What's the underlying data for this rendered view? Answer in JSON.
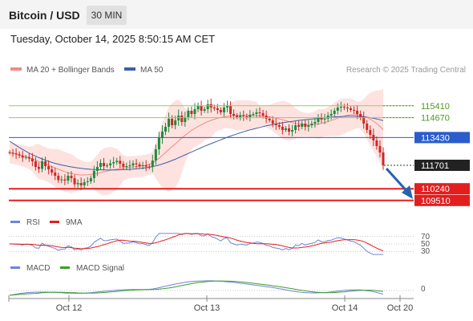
{
  "header": {
    "title": "Bitcoin / USD",
    "timeframe": "30 MIN",
    "datetime": "Tuesday, October 14, 2025 8:50:15 AM CET"
  },
  "legend": {
    "ma20": "MA 20 + Bollinger Bands",
    "ma50": "MA 50",
    "copyright": "Research © 2025 Trading Central"
  },
  "colors": {
    "ma20": "#f08a86",
    "band": "#fdd8d6",
    "ma50": "#3d5fa8",
    "up": "#1e8a3e",
    "down": "#c92a26",
    "resistance": "#9acd5a",
    "pivot": "#2a5ccc",
    "support": "#e31e1e",
    "arrow": "#2563b0",
    "rsi": "#6d86d6",
    "rsi_ma": "#e31e1e",
    "macd": "#6d86d6",
    "macd_signal": "#3c9c2c"
  },
  "chart_data": [
    {
      "type": "candlestick",
      "title": "Bitcoin / USD",
      "x_ticks": [
        "Oct 12",
        "Oct 13",
        "Oct 14",
        "Oct 20"
      ],
      "ylim": [
        108900,
        117200
      ],
      "price_levels": [
        {
          "label": "115410",
          "value": 115410,
          "kind": "resistance"
        },
        {
          "label": "114670",
          "value": 114670,
          "kind": "resistance"
        },
        {
          "label": "113430",
          "value": 113430,
          "kind": "pivot"
        },
        {
          "label": "111701",
          "value": 111701,
          "kind": "last"
        },
        {
          "label": "110240",
          "value": 110240,
          "kind": "support"
        },
        {
          "label": "109510",
          "value": 109510,
          "kind": "support"
        }
      ],
      "close": [
        112490,
        112440,
        112380,
        112310,
        112180,
        112220,
        112120,
        111950,
        111600,
        111480,
        111950,
        111650,
        111450,
        111250,
        111050,
        110780,
        110820,
        110750,
        111050,
        110900,
        110520,
        110600,
        110450,
        110650,
        110700,
        110900,
        111350,
        111600,
        111850,
        111650,
        111700,
        111820,
        111900,
        111980,
        111800,
        111600,
        111650,
        111700,
        111820,
        111760,
        111650,
        111700,
        111620,
        111600,
        112000,
        112700,
        113400,
        113800,
        114100,
        114600,
        114200,
        114500,
        114800,
        114400,
        114700,
        115100,
        114900,
        115200,
        115400,
        115100,
        115200,
        115500,
        115300,
        115250,
        115150,
        115000,
        115300,
        115400,
        114900,
        114800,
        114700,
        114800,
        114750,
        114700,
        114850,
        114900,
        115000,
        114950,
        114800,
        114600,
        114500,
        114300,
        114200,
        114100,
        113900,
        114000,
        113800,
        113900,
        114200,
        114100,
        114300,
        114100,
        114200,
        114300,
        114400,
        114700,
        114550,
        114600,
        114800,
        114900,
        115100,
        115300,
        115350,
        115300,
        115250,
        115150,
        115100,
        114900,
        114700,
        114300,
        113900,
        113600,
        113250,
        112900,
        112500,
        111701
      ],
      "ma20": [
        112480,
        112450,
        112400,
        112350,
        112290,
        112230,
        112160,
        112100,
        112020,
        111940,
        111860,
        111780,
        111700,
        111620,
        111540,
        111460,
        111380,
        111300,
        111240,
        111190,
        111150,
        111120,
        111100,
        111100,
        111110,
        111130,
        111160,
        111200,
        111250,
        111300,
        111340,
        111380,
        111420,
        111460,
        111500,
        111540,
        111560,
        111580,
        111600,
        111620,
        111640,
        111660,
        111700,
        111760,
        111850,
        111980,
        112140,
        112320,
        112500,
        112680,
        112860,
        113040,
        113220,
        113400,
        113570,
        113730,
        113880,
        114000,
        114120,
        114230,
        114330,
        114420,
        114500,
        114570,
        114630,
        114680,
        114720,
        114750,
        114780,
        114800,
        114810,
        114820,
        114820,
        114820,
        114810,
        114800,
        114790,
        114780,
        114760,
        114740,
        114710,
        114680,
        114640,
        114590,
        114540,
        114480,
        114420,
        114360,
        114310,
        114270,
        114240,
        114220,
        114210,
        114220,
        114240,
        114270,
        114310,
        114360,
        114420,
        114490,
        114560,
        114640,
        114710,
        114770,
        114820,
        114850,
        114860,
        114850,
        114820,
        114760,
        114680,
        114580,
        114450,
        114300,
        114120,
        113920
      ],
      "ma50": [
        113200,
        113070,
        112940,
        112810,
        112690,
        112570,
        112460,
        112360,
        112270,
        112180,
        112100,
        112020,
        111950,
        111880,
        111820,
        111770,
        111720,
        111680,
        111640,
        111600,
        111570,
        111540,
        111510,
        111490,
        111470,
        111450,
        111440,
        111430,
        111420,
        111420,
        111410,
        111410,
        111410,
        111410,
        111420,
        111430,
        111440,
        111450,
        111460,
        111480,
        111500,
        111520,
        111550,
        111580,
        111620,
        111670,
        111720,
        111780,
        111850,
        111920,
        112000,
        112080,
        112170,
        112260,
        112350,
        112440,
        112530,
        112620,
        112710,
        112800,
        112890,
        112970,
        113050,
        113130,
        113210,
        113290,
        113370,
        113450,
        113520,
        113590,
        113660,
        113730,
        113790,
        113850,
        113910,
        113960,
        114010,
        114060,
        114110,
        114160,
        114200,
        114240,
        114280,
        114320,
        114350,
        114380,
        114410,
        114440,
        114470,
        114500,
        114520,
        114540,
        114560,
        114580,
        114600,
        114620,
        114640,
        114660,
        114680,
        114700,
        114720,
        114730,
        114740,
        114750,
        114760,
        114760,
        114760,
        114750,
        114740,
        114720,
        114700,
        114670,
        114630,
        114590,
        114540,
        114480
      ]
    },
    {
      "type": "line",
      "title": "RSI",
      "series": [
        {
          "name": "RSI"
        },
        {
          "name": "9MA"
        }
      ],
      "y_ticks": [
        70,
        50,
        30
      ],
      "ylim": [
        20,
        80
      ]
    },
    {
      "type": "line",
      "title": "MACD",
      "series": [
        {
          "name": "MACD"
        },
        {
          "name": "MACD Signal"
        }
      ],
      "y_ticks": [
        0
      ]
    }
  ]
}
